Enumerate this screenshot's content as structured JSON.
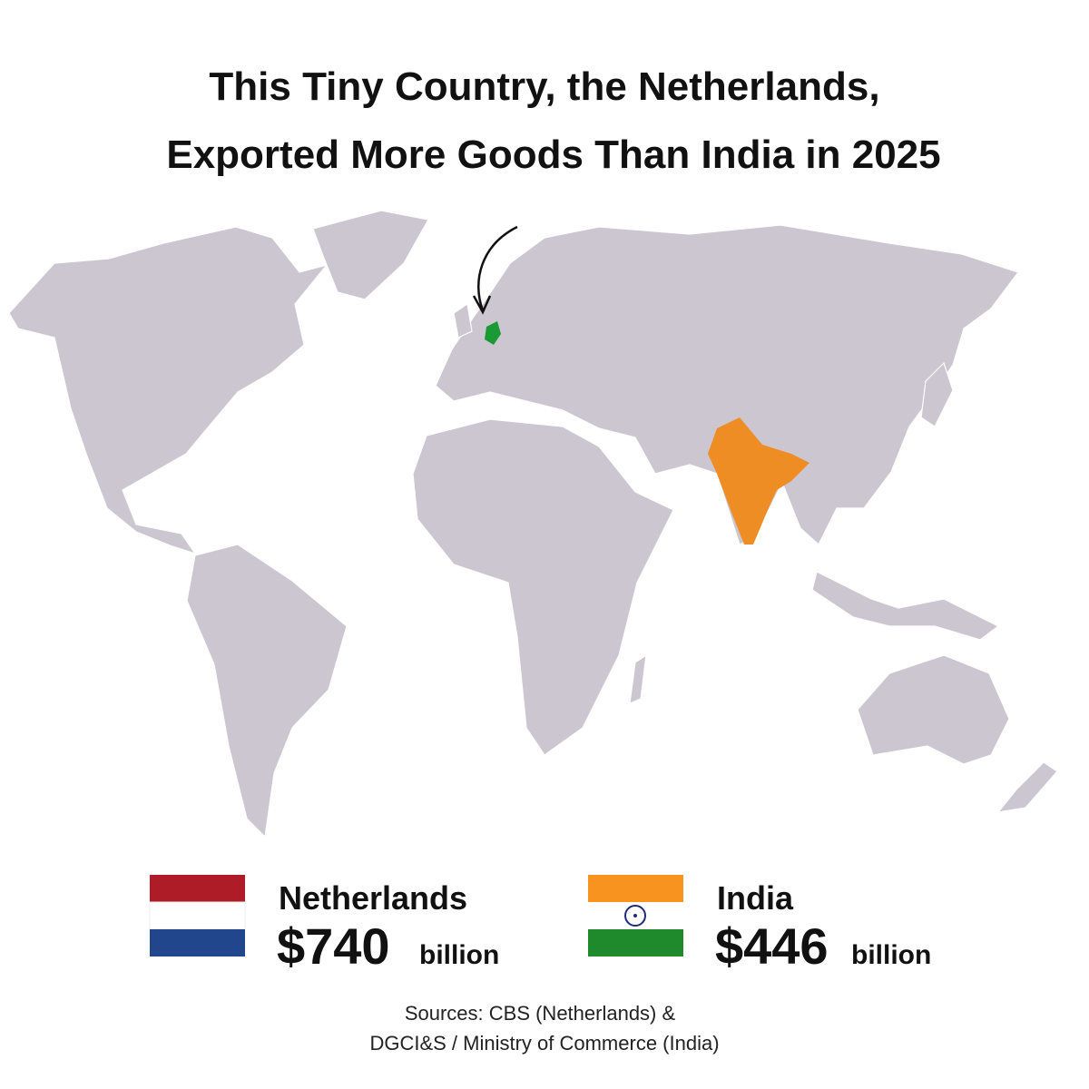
{
  "header": {
    "title_lines": [
      "This Tiny Country, the Netherlands,",
      "Exported More Goods Than India in 2025"
    ]
  },
  "map": {
    "land_color": "#ccc6d0",
    "border_color": "#ffffff",
    "highlight_colors": [
      "#1a9a35",
      "#ef8d25"
    ]
  },
  "comparison": [
    {
      "country": "Netherlands",
      "amount": "$740",
      "unit": "billion"
    },
    {
      "country": "India",
      "amount": "$446",
      "unit": "billion"
    }
  ],
  "sources": [
    "Sources: CBS (Netherlands) &",
    "DGCI&S / Ministry of Commerce (India)"
  ]
}
